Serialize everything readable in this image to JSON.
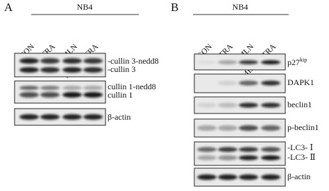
{
  "panels": [
    {
      "letter": "A",
      "group": "NB4",
      "lanes": [
        "CON",
        "ATRA",
        "MLN",
        "MLN+ ATRA"
      ],
      "blots": [
        {
          "labels": [
            "-cullin 3-nedd8",
            "-cullin 3"
          ]
        },
        {
          "labels": [
            "cullin 1-nedd8",
            "cullin 1"
          ]
        },
        {
          "labels": [
            "β-actin"
          ]
        }
      ]
    },
    {
      "letter": "B",
      "group": "NB4",
      "lanes": [
        "CON",
        "ATRA",
        "MLN",
        "MLN+ ATRA"
      ],
      "blots": [
        {
          "labels": [
            "p27"
          ],
          "superscript": "kip"
        },
        {
          "labels": [
            "DAPK1"
          ]
        },
        {
          "labels": [
            "beclin1"
          ]
        },
        {
          "labels": [
            "p-beclin1"
          ]
        },
        {
          "labels": [
            "-LC3- Ⅰ",
            "-LC3- Ⅱ"
          ]
        },
        {
          "labels": [
            "β-actin"
          ]
        }
      ]
    }
  ]
}
